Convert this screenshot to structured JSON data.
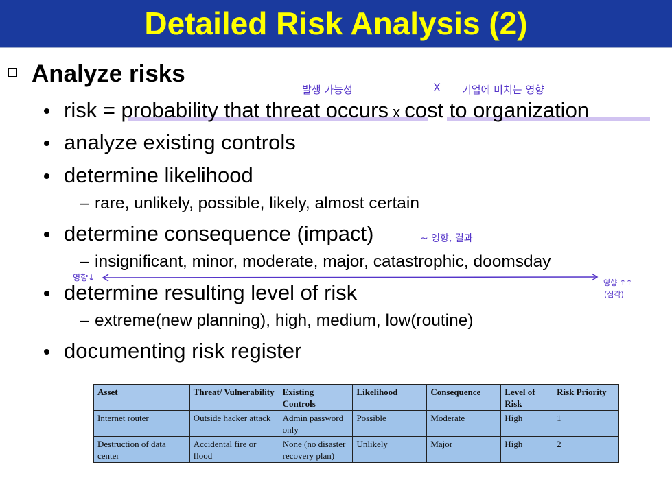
{
  "slide": {
    "title": "Detailed Risk Analysis (2)",
    "heading": "Analyze risks",
    "bullets": [
      {
        "text_a": "risk = ",
        "text_b": "probability that threat occurs",
        "text_c": " x ",
        "text_d": "cost to organization"
      },
      {
        "text": "analyze existing controls"
      },
      {
        "text": "determine likelihood"
      },
      {
        "text": "determine consequence (impact)"
      },
      {
        "text": "determine resulting level of risk"
      },
      {
        "text": "documenting risk register"
      }
    ],
    "subitems": [
      "rare, unlikely, possible, likely, almost certain",
      "insignificant, minor, moderate, major, catastrophic, doomsday",
      "extreme(new planning), high, medium, low(routine)"
    ],
    "dash": "–"
  },
  "annotations": {
    "probability_note": "발생 가능성",
    "times_note": "X",
    "cost_note": "기업에 미치는 영향",
    "consequence_note": "~ 영향, 결과",
    "arrow_left_note": "영향↓",
    "arrow_right_note_1": "영향 ↑↑",
    "arrow_right_note_2": "(심각)",
    "ink_color": "#5535c9",
    "highlight_color": "#c9b8ef"
  },
  "colors": {
    "title_bg": "#1a3a9e",
    "title_text": "#ffff00",
    "table_bg": "#9fc3ea"
  },
  "table": {
    "headers": [
      "Asset",
      "Threat/ Vulnerability",
      "Existing Controls",
      "Likelihood",
      "Consequence",
      "Level of Risk",
      "Risk Priority"
    ],
    "rows": [
      [
        "Internet router",
        "Outside hacker attack",
        "Admin password only",
        "Possible",
        "Moderate",
        "High",
        "1"
      ],
      [
        "Destruction of data center",
        "Accidental fire or flood",
        "None (no disaster recovery plan)",
        "Unlikely",
        "Major",
        "High",
        "2"
      ]
    ]
  }
}
